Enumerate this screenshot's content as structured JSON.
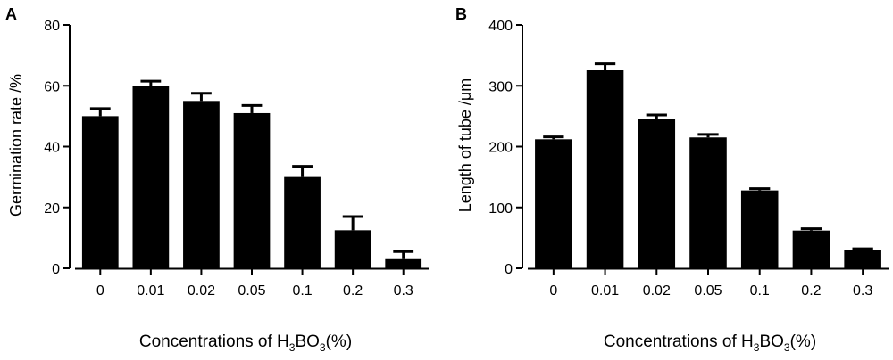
{
  "chart_data": [
    {
      "panel": "A",
      "type": "bar",
      "title": "",
      "xlabel": {
        "prefix": "Concentrations of H",
        "sub1": "3",
        "mid": "BO",
        "sub2": "3",
        "suffix": "(%)"
      },
      "ylabel": "Germination rate /%",
      "categories": [
        "0",
        "0.01",
        "0.02",
        "0.05",
        "0.1",
        "0.2",
        "0.3"
      ],
      "values": [
        50,
        60,
        55,
        51,
        30,
        12.5,
        3
      ],
      "errors": [
        2.5,
        1.5,
        2.5,
        2.5,
        3.5,
        4.5,
        2.5
      ],
      "ylim": [
        0,
        80
      ],
      "yticks": [
        0,
        20,
        40,
        60,
        80
      ],
      "grid": false,
      "bar_color": "#000000"
    },
    {
      "panel": "B",
      "type": "bar",
      "title": "",
      "xlabel": {
        "prefix": "Concentrations of H",
        "sub1": "3",
        "mid": "BO",
        "sub2": "3",
        "suffix": "(%)"
      },
      "ylabel": "Length of tube /μm",
      "categories": [
        "0",
        "0.01",
        "0.02",
        "0.05",
        "0.1",
        "0.2",
        "0.3"
      ],
      "values": [
        212,
        326,
        245,
        215,
        128,
        62,
        30
      ],
      "errors": [
        4,
        10,
        7,
        5,
        3,
        3,
        2
      ],
      "ylim": [
        0,
        400
      ],
      "yticks": [
        0,
        100,
        200,
        300,
        400
      ],
      "grid": false,
      "bar_color": "#000000"
    }
  ]
}
